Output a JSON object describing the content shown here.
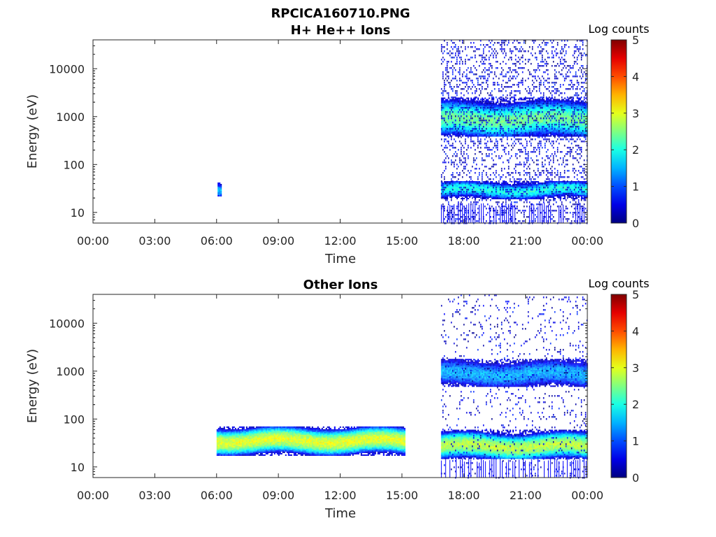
{
  "figure_title": "RPCICA160710.PNG",
  "chart_data": [
    {
      "type": "heatmap",
      "title": "H+ He++ Ions",
      "xlabel": "Time",
      "ylabel": "Energy (eV)",
      "x_ticks": [
        "00:00",
        "03:00",
        "06:00",
        "09:00",
        "12:00",
        "15:00",
        "18:00",
        "21:00",
        "00:00"
      ],
      "xlim_hours": [
        0,
        24
      ],
      "y_scale": "log",
      "y_ticks": [
        "10",
        "100",
        "1000",
        "10000"
      ],
      "ylim": [
        6,
        40000
      ],
      "colorbar": {
        "title": "Log counts",
        "ticks": [
          "0",
          "1",
          "2",
          "3",
          "4",
          "5"
        ],
        "range": [
          0,
          5
        ],
        "colormap": "jet"
      },
      "features": [
        {
          "start_h": 6.05,
          "end_h": 6.2,
          "energy_low": 22,
          "energy_high": 45,
          "center": 32,
          "peak_log": 1.5
        },
        {
          "start_h": 16.9,
          "end_h": 24,
          "energy_low": 20,
          "energy_high": 45,
          "center": 30,
          "peak_log": 2.0
        },
        {
          "start_h": 16.9,
          "end_h": 24,
          "energy_low": 400,
          "energy_high": 2500,
          "center": 900,
          "peak_log": 2.4
        }
      ]
    },
    {
      "type": "heatmap",
      "title": "Other Ions",
      "xlabel": "Time",
      "ylabel": "Energy (eV)",
      "x_ticks": [
        "00:00",
        "03:00",
        "06:00",
        "09:00",
        "12:00",
        "15:00",
        "18:00",
        "21:00",
        "00:00"
      ],
      "xlim_hours": [
        0,
        24
      ],
      "y_scale": "log",
      "y_ticks": [
        "10",
        "100",
        "1000",
        "10000"
      ],
      "ylim": [
        6,
        40000
      ],
      "colorbar": {
        "title": "Log counts",
        "ticks": [
          "0",
          "1",
          "2",
          "3",
          "4",
          "5"
        ],
        "range": [
          0,
          5
        ],
        "colormap": "jet"
      },
      "features": [
        {
          "start_h": 6.0,
          "end_h": 15.1,
          "energy_low": 18,
          "energy_high": 70,
          "center": 36,
          "peak_log": 3.0
        },
        {
          "start_h": 16.9,
          "end_h": 24,
          "energy_low": 15,
          "energy_high": 60,
          "center": 28,
          "peak_log": 2.8
        },
        {
          "start_h": 16.9,
          "end_h": 24,
          "energy_low": 500,
          "energy_high": 1800,
          "center": 900,
          "peak_log": 1.5
        }
      ]
    }
  ]
}
